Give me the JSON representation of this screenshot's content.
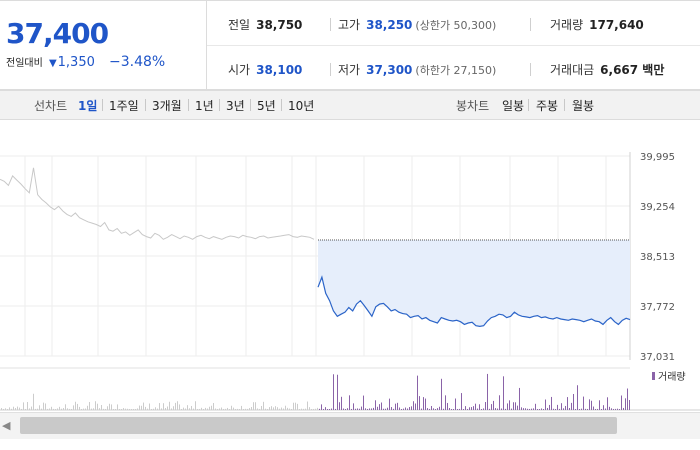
{
  "price": {
    "current": "37,400",
    "change_label": "전일대비",
    "change_arrow": "▼",
    "change": "1,350",
    "change_pct": "−3.48%",
    "color": "#1f55c8"
  },
  "stats": {
    "prev_close": {
      "label": "전일",
      "value": "38,750"
    },
    "open": {
      "label": "시가",
      "value": "38,100"
    },
    "high": {
      "label": "고가",
      "value": "38,250",
      "limit_note": "(상한가 50,300)"
    },
    "low": {
      "label": "저가",
      "value": "37,300",
      "limit_note": "(하한가 27,150)"
    },
    "volume": {
      "label": "거래량",
      "value": "177,640"
    },
    "turnover": {
      "label": "거래대금",
      "value": "6,667 백만"
    }
  },
  "tabs": {
    "line_label": "선차트",
    "line_periods": [
      "1일",
      "1주일",
      "3개월",
      "1년",
      "3년",
      "5년",
      "10년"
    ],
    "line_active": "1일",
    "candle_label": "봉차트",
    "candle_periods": [
      "일봉",
      "주봉",
      "월봉"
    ]
  },
  "chart_data": {
    "type": "line",
    "y_ticks": [
      "39,995",
      "39,254",
      "38,513",
      "37,772",
      "37,031"
    ],
    "ylim": [
      37031,
      39995
    ],
    "prev_close_ref": 38750,
    "series": [
      {
        "values": [
          39650,
          39620,
          39560,
          39700,
          39640,
          39580,
          39510,
          39450,
          39820,
          39420,
          39350,
          39300,
          39240,
          39200,
          39250,
          39180,
          39130,
          39100,
          39150,
          39080,
          39050,
          39020,
          39000,
          38980,
          38950,
          39010,
          38900,
          38880,
          38920,
          38850,
          38870,
          38820,
          38860,
          38900,
          38830,
          38800,
          38780,
          38850,
          38820,
          38760,
          38790,
          38830,
          38800,
          38770,
          38810,
          38790,
          38760,
          38800,
          38820,
          38790,
          38770,
          38800,
          38780,
          38760,
          38790,
          38810,
          38800,
          38780,
          38820,
          38800,
          38790,
          38770,
          38800,
          38810,
          38780,
          38790,
          38800,
          38810,
          38820,
          38830,
          38800,
          38790,
          38810,
          38800,
          38790,
          38760
        ]
      },
      {
        "values": [
          38050,
          38200,
          37960,
          37850,
          37700,
          37620,
          37650,
          37680,
          37750,
          37700,
          37800,
          37850,
          37780,
          37700,
          37620,
          37760,
          37800,
          37810,
          37760,
          37700,
          37720,
          37680,
          37660,
          37650,
          37600,
          37620,
          37630,
          37580,
          37600,
          37560,
          37540,
          37520,
          37600,
          37580,
          37560,
          37550,
          37560,
          37540,
          37500,
          37520,
          37530,
          37480,
          37470,
          37480,
          37550,
          37600,
          37620,
          37650,
          37640,
          37600,
          37620,
          37680,
          37640,
          37620,
          37610,
          37600,
          37620,
          37630,
          37600,
          37610,
          37590,
          37580,
          37600,
          37580,
          37570,
          37560,
          37580,
          37570,
          37560,
          37540,
          37560,
          37580,
          37550,
          37540,
          37500,
          37560,
          37600,
          37540,
          37500,
          37560,
          37590,
          37570
        ]
      }
    ],
    "volume_legend": "거래량"
  }
}
